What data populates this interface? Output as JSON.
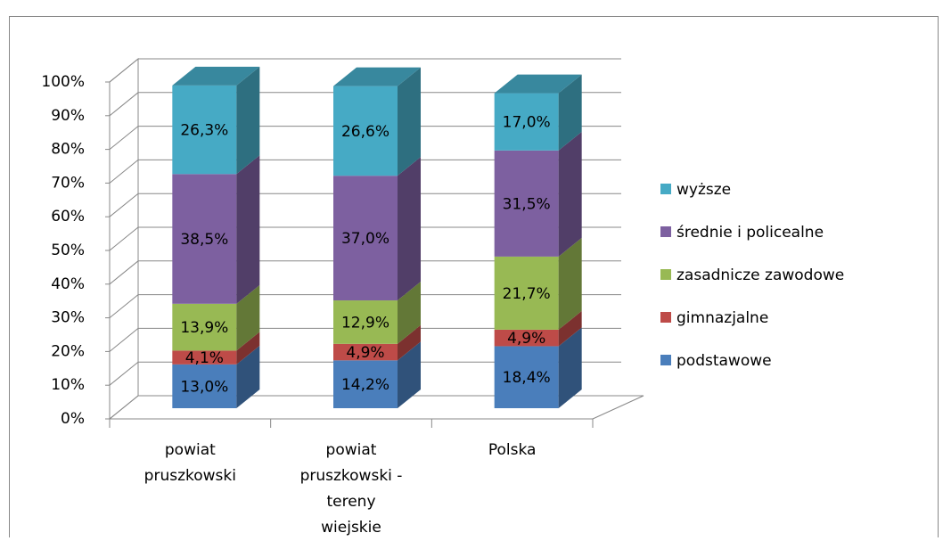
{
  "chart_data": {
    "type": "bar3d_stacked",
    "categories": [
      "powiat pruszkowski",
      "powiat pruszkowski - tereny wiejskie",
      "Polska"
    ],
    "series": [
      {
        "name": "podstawowe",
        "color": "#4a7ebb",
        "values": [
          13.0,
          14.2,
          18.4
        ],
        "value_labels": [
          "13,0%",
          "14,2%",
          "18,4%"
        ]
      },
      {
        "name": "gimnazjalne",
        "color": "#be4b48",
        "values": [
          4.1,
          4.9,
          4.9
        ],
        "value_labels": [
          "4,1%",
          "4,9%",
          "4,9%"
        ]
      },
      {
        "name": "zasadnicze zawodowe",
        "color": "#98b954",
        "values": [
          13.9,
          12.9,
          21.7
        ],
        "value_labels": [
          "13,9%",
          "12,9%",
          "21,7%"
        ]
      },
      {
        "name": "średnie i policealne",
        "color": "#7d60a0",
        "values": [
          38.5,
          37.0,
          31.5
        ],
        "value_labels": [
          "38,5%",
          "37,0%",
          "31,5%"
        ]
      },
      {
        "name": "wyższe",
        "color": "#46aac5",
        "values": [
          26.3,
          26.6,
          17.0
        ],
        "value_labels": [
          "26,3%",
          "26,6%",
          "17,0%"
        ]
      }
    ],
    "ylim": [
      0,
      100
    ],
    "yticks": [
      {
        "value": 0,
        "label": "0%"
      },
      {
        "value": 10,
        "label": "10%"
      },
      {
        "value": 20,
        "label": "20%"
      },
      {
        "value": 30,
        "label": "30%"
      },
      {
        "value": 40,
        "label": "40%"
      },
      {
        "value": 50,
        "label": "50%"
      },
      {
        "value": 60,
        "label": "60%"
      },
      {
        "value": 70,
        "label": "70%"
      },
      {
        "value": 80,
        "label": "80%"
      },
      {
        "value": 90,
        "label": "90%"
      },
      {
        "value": 100,
        "label": "100%"
      }
    ],
    "grid": true,
    "legend": "right"
  }
}
